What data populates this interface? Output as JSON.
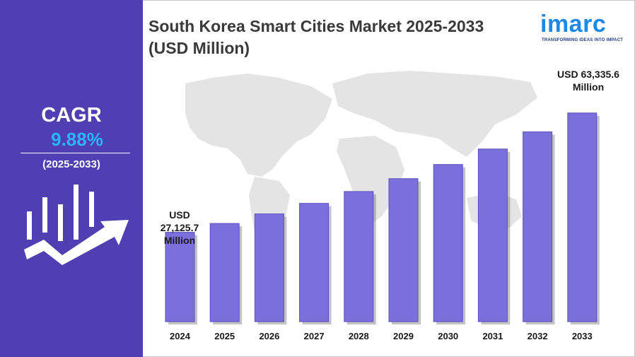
{
  "sidebar": {
    "cagr_label": "CAGR",
    "cagr_value": "9.88%",
    "cagr_period": "(2025-2033)"
  },
  "title": "South Korea Smart Cities Market 2025-2033 (USD Million)",
  "logo": {
    "word": "imarc",
    "tagline": "TRANSFORMING IDEAS INTO IMPACT"
  },
  "annotations": {
    "first": [
      "USD",
      "27,125.7",
      "Million"
    ],
    "last": [
      "USD 63,335.6",
      "Million"
    ]
  },
  "colors": {
    "sidebar": "#4f3fb2",
    "bar": "#7b6fdb",
    "bar_edge": "#5b4fc0",
    "accent": "#29b6f6",
    "logo": "#1e88e5"
  },
  "chart_data": {
    "type": "bar",
    "categories": [
      "2024",
      "2025",
      "2026",
      "2027",
      "2028",
      "2029",
      "2030",
      "2031",
      "2032",
      "2033"
    ],
    "values": [
      27125.7,
      29800,
      32700,
      35900,
      39500,
      43400,
      47700,
      52400,
      57600,
      63335.6
    ],
    "title": "South Korea Smart Cities Market 2025-2033 (USD Million)",
    "xlabel": "",
    "ylabel": "",
    "ylim": [
      0,
      70000
    ],
    "grid": false,
    "legend": "none"
  }
}
